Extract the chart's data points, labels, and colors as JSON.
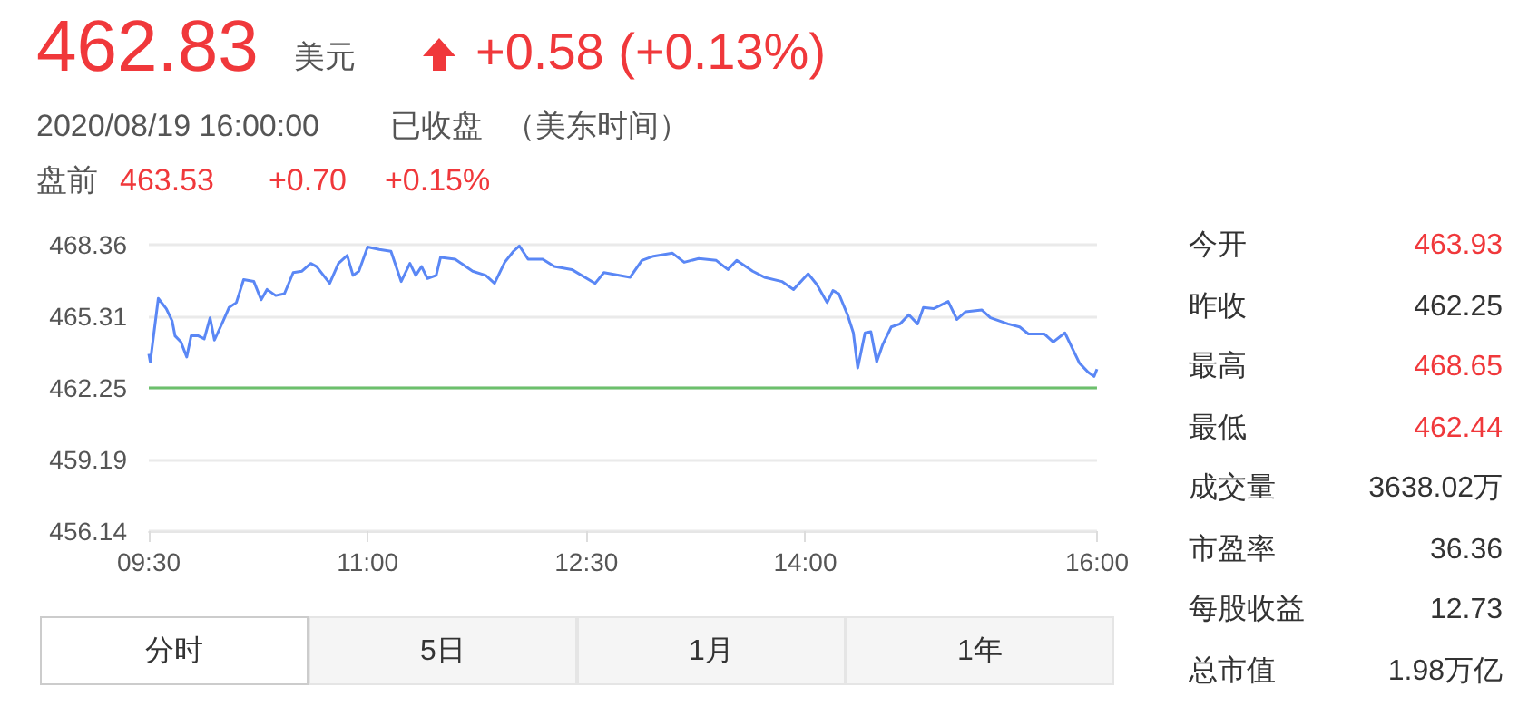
{
  "chart_data": {
    "type": "line",
    "title": "462.83",
    "annotations": [
      "美元",
      "+0.58 (+0.13%)",
      "2020/08/19 16:00:00",
      "已收盘",
      "（美东时间）",
      "盘前",
      "463.53",
      "+0.70",
      "+0.15%",
      "分时",
      "5日",
      "1月",
      "1年",
      "今开",
      "463.93",
      "昨收",
      "462.25",
      "最高",
      "468.65",
      "最低",
      "462.44",
      "成交量",
      "3638.02万",
      "市盈率",
      "36.36",
      "每股收益",
      "12.73",
      "总市值",
      "1.98万亿"
    ],
    "series": [
      {
        "color": "#5a87f5",
        "x": [
          9.5,
          9.51,
          9.565,
          9.62,
          9.66,
          9.68,
          9.72,
          9.76,
          9.79,
          9.84,
          9.88,
          9.92,
          9.95,
          10.01,
          10.05,
          10.1,
          10.15,
          10.22,
          10.27,
          10.31,
          10.37,
          10.43,
          10.49,
          10.55,
          10.61,
          10.65,
          10.74,
          10.8,
          10.86,
          10.9,
          10.94,
          11.0,
          11.08,
          11.16,
          11.23,
          11.29,
          11.33,
          11.37,
          11.41,
          11.47,
          11.5,
          11.6,
          11.72,
          11.81,
          11.87,
          11.94,
          12.0,
          12.04,
          12.1,
          12.2,
          12.28,
          12.4,
          12.56,
          12.62,
          12.8,
          12.88,
          12.96,
          13.09,
          13.17,
          13.27,
          13.39,
          13.47,
          13.53,
          13.64,
          13.72,
          13.84,
          13.92,
          14.02,
          14.08,
          14.15,
          14.19,
          14.23,
          14.29,
          14.33,
          14.36,
          14.41,
          14.45,
          14.49,
          14.53,
          14.59,
          14.65,
          14.71,
          14.77,
          14.81,
          14.88,
          14.98,
          15.04,
          15.1,
          15.21,
          15.27,
          15.39,
          15.47,
          15.53,
          15.64,
          15.7,
          15.78,
          15.84,
          15.88,
          15.94,
          15.98,
          16.0
        ],
        "values": [
          463.7,
          463.36,
          466.07,
          465.63,
          465.11,
          464.47,
          464.21,
          463.57,
          464.47,
          464.47,
          464.34,
          465.24,
          464.29,
          465.11,
          465.68,
          465.89,
          466.87,
          466.79,
          466.01,
          466.45,
          466.19,
          466.27,
          467.17,
          467.23,
          467.56,
          467.43,
          466.71,
          467.56,
          467.9,
          467.05,
          467.23,
          468.26,
          468.16,
          468.08,
          466.79,
          467.56,
          467.05,
          467.43,
          466.92,
          467.05,
          467.82,
          467.74,
          467.23,
          467.05,
          466.71,
          467.61,
          468.08,
          468.31,
          467.74,
          467.74,
          467.43,
          467.3,
          466.71,
          467.17,
          466.97,
          467.69,
          467.87,
          468.0,
          467.61,
          467.77,
          467.69,
          467.3,
          467.69,
          467.23,
          466.97,
          466.79,
          466.45,
          467.12,
          466.66,
          465.89,
          466.4,
          466.27,
          465.37,
          464.6,
          463.1,
          464.6,
          464.65,
          463.36,
          464.08,
          464.85,
          464.98,
          465.37,
          464.98,
          465.68,
          465.63,
          465.94,
          465.17,
          465.5,
          465.58,
          465.24,
          464.98,
          464.85,
          464.55,
          464.55,
          464.21,
          464.6,
          463.82,
          463.31,
          462.92,
          462.74,
          463.05
        ]
      }
    ],
    "xlim": [
      9.5,
      16
    ],
    "xticks": [
      {
        "value": 9.5,
        "label": "09:30"
      },
      {
        "value": 11,
        "label": "11:00"
      },
      {
        "value": 12.5,
        "label": "12:30"
      },
      {
        "value": 14,
        "label": "14:00"
      },
      {
        "value": 16,
        "label": "16:00"
      }
    ],
    "ylim": [
      456.14,
      468.36
    ],
    "yticks": [
      456.14,
      459.19,
      462.25,
      465.31,
      468.36
    ],
    "ref_lines": [
      {
        "axis": "y",
        "value": 462.25,
        "color": "#6cc06c"
      }
    ],
    "grid": "y",
    "marker": "none",
    "line_style": "solid"
  }
}
